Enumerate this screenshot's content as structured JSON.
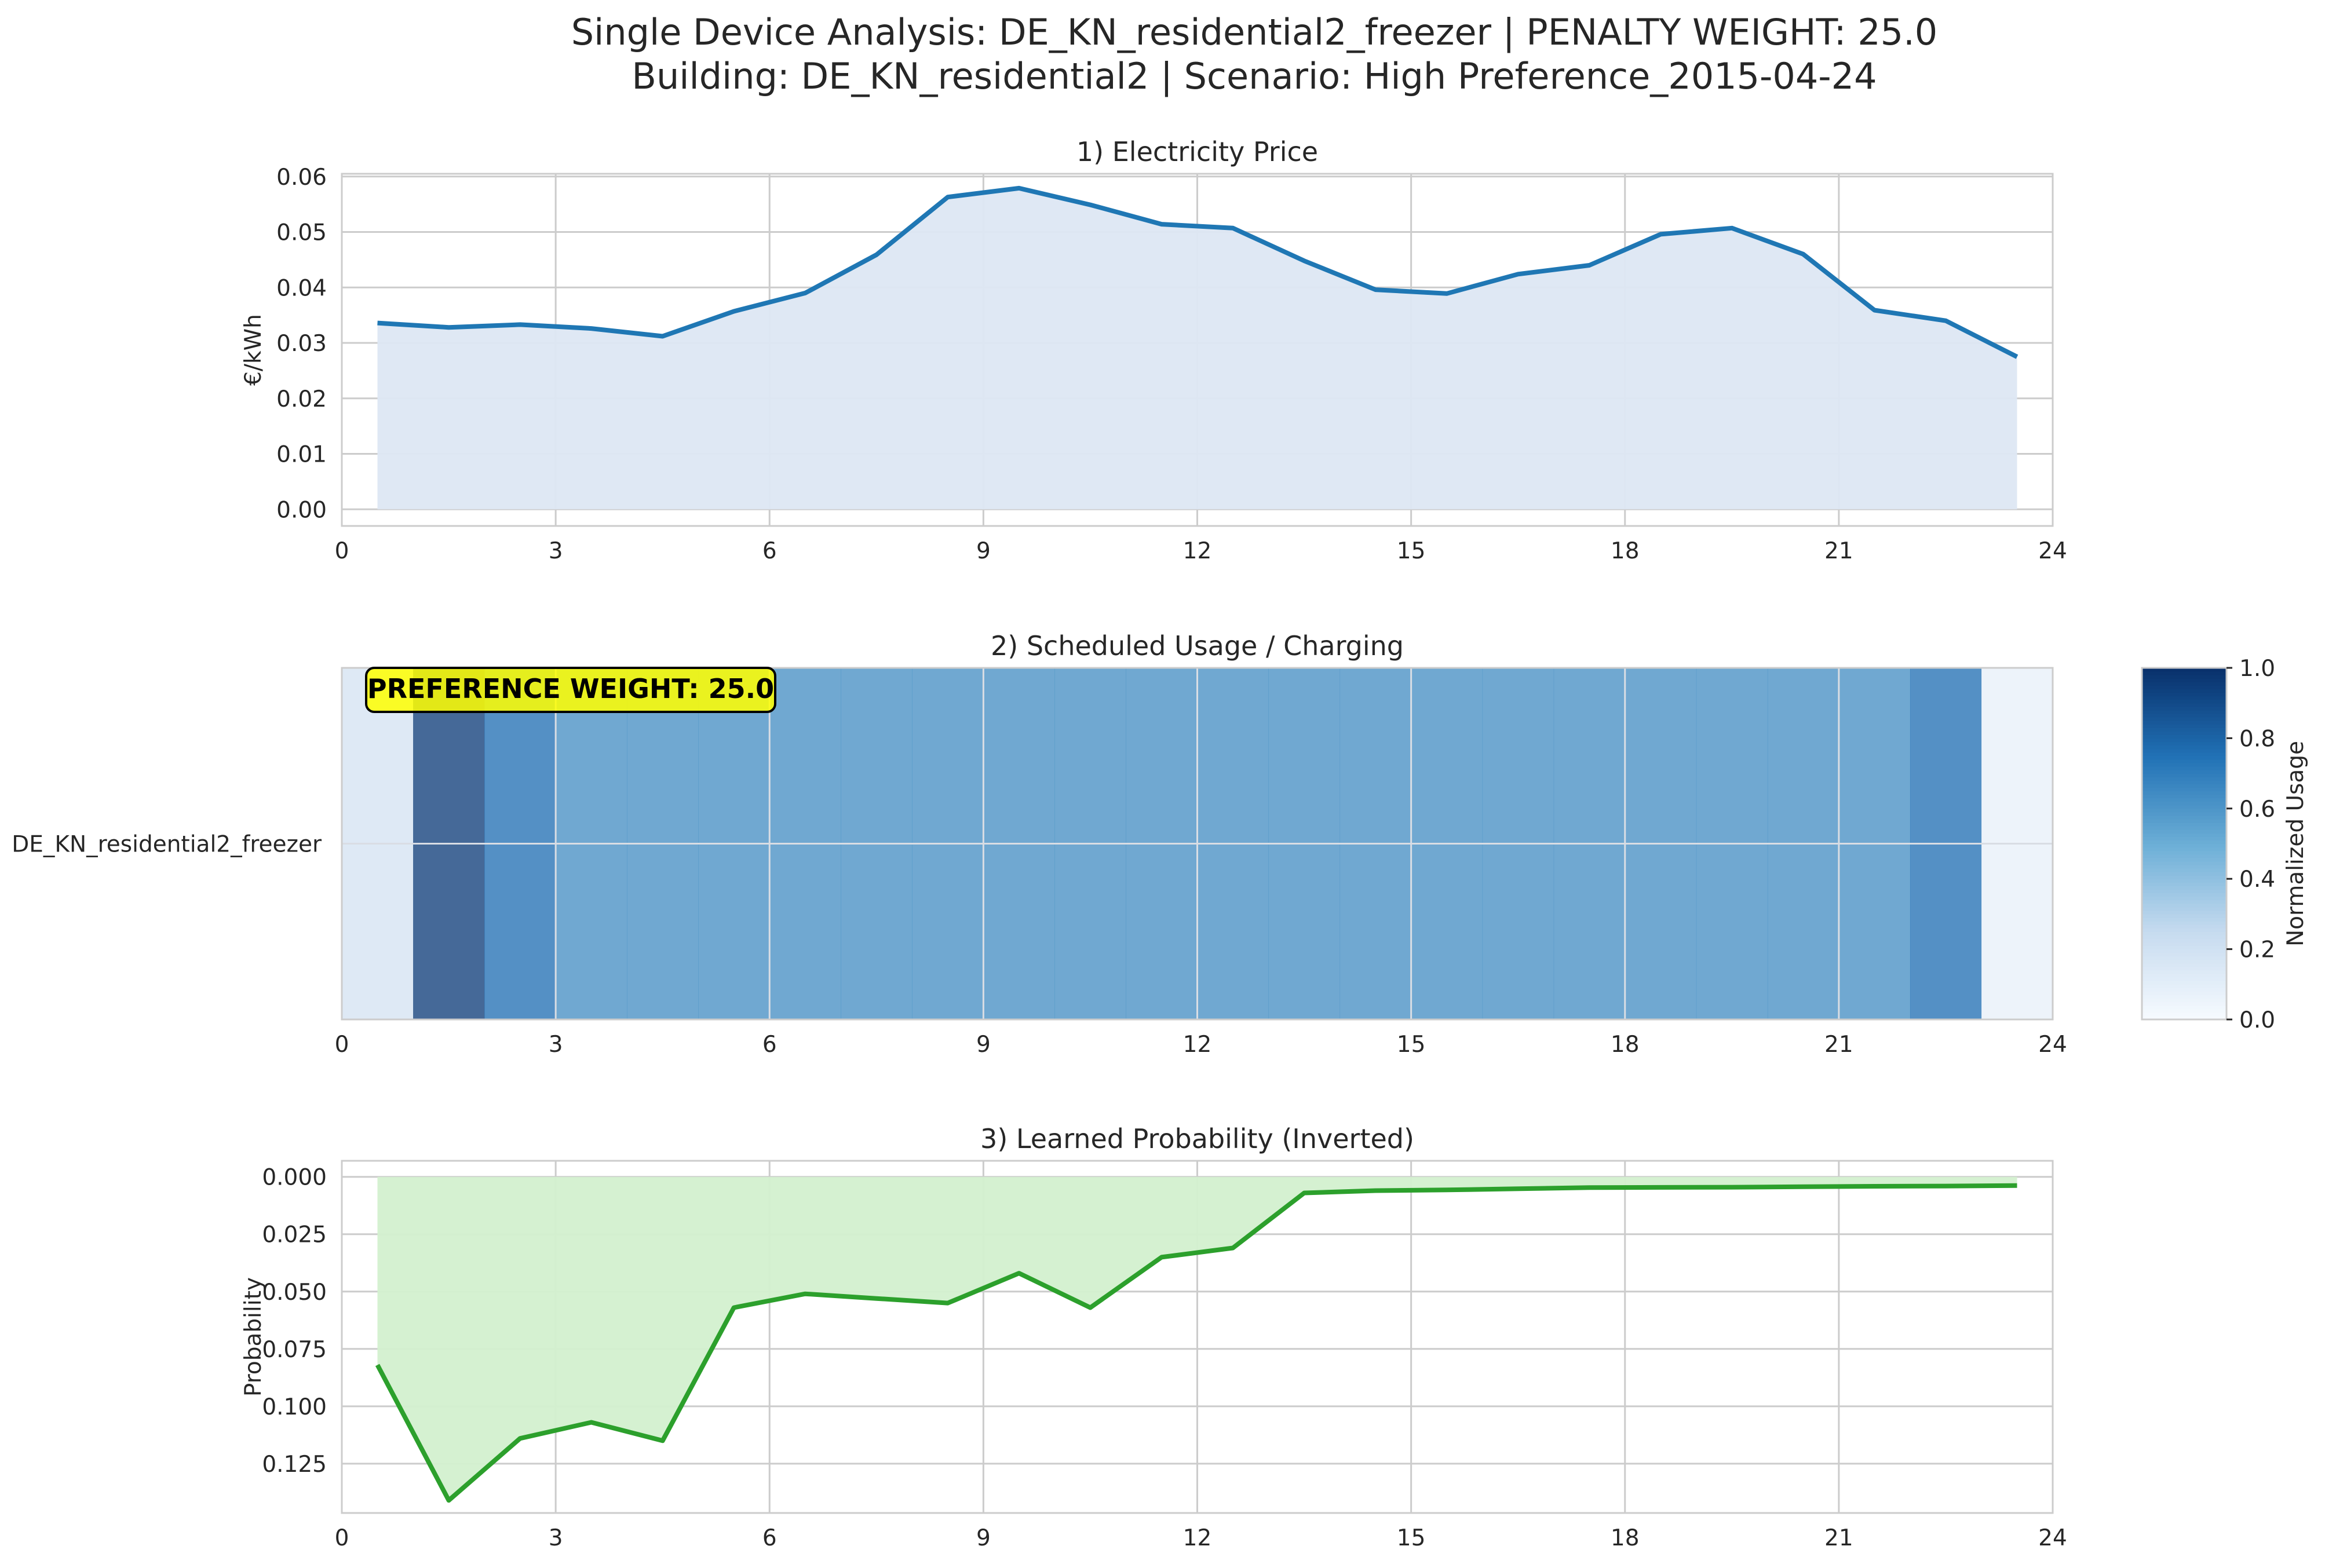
{
  "figure": {
    "title_line1": "Single Device Analysis: DE_KN_residential2_freezer | PENALTY WEIGHT: 25.0",
    "title_line2": "Building: DE_KN_residential2 | Scenario: High Preference_2015-04-24"
  },
  "chart_data": [
    {
      "type": "area",
      "title": "1) Electricity Price",
      "xlabel": "",
      "ylabel": "€/kWh",
      "xlim": [
        0,
        24
      ],
      "ylim": [
        -0.003,
        0.0605
      ],
      "xticks": [
        "0",
        "3",
        "6",
        "9",
        "12",
        "15",
        "18",
        "21",
        "24"
      ],
      "yticks": [
        "0.00",
        "0.01",
        "0.02",
        "0.03",
        "0.04",
        "0.05",
        "0.06"
      ],
      "grid": true,
      "x": [
        0.5,
        1.5,
        2.5,
        3.5,
        4.5,
        5.5,
        6.5,
        7.5,
        8.5,
        9.5,
        10.5,
        11.5,
        12.5,
        13.5,
        14.5,
        15.5,
        16.5,
        17.5,
        18.5,
        19.5,
        20.5,
        21.5,
        22.5,
        23.5
      ],
      "values": [
        0.0336,
        0.0328,
        0.0333,
        0.0326,
        0.0312,
        0.0357,
        0.039,
        0.0459,
        0.0563,
        0.0579,
        0.0549,
        0.0514,
        0.0507,
        0.0448,
        0.0396,
        0.0389,
        0.0424,
        0.044,
        0.0496,
        0.0507,
        0.046,
        0.0359,
        0.034,
        0.0275
      ],
      "line_color": "#1f77b4",
      "fill_color": "#dde7f3"
    },
    {
      "type": "heatmap",
      "title": "2) Scheduled Usage / Charging",
      "xlim": [
        0,
        24
      ],
      "xticks": [
        "0",
        "3",
        "6",
        "9",
        "12",
        "15",
        "18",
        "21",
        "24"
      ],
      "rows": [
        "DE_KN_residential2_freezer"
      ],
      "hours": [
        0,
        1,
        2,
        3,
        4,
        5,
        6,
        7,
        8,
        9,
        10,
        11,
        12,
        13,
        14,
        15,
        16,
        17,
        18,
        19,
        20,
        21,
        22,
        23
      ],
      "values": [
        0.15,
        0.95,
        0.75,
        0.62,
        0.62,
        0.62,
        0.62,
        0.62,
        0.62,
        0.62,
        0.62,
        0.62,
        0.62,
        0.62,
        0.62,
        0.62,
        0.62,
        0.62,
        0.62,
        0.62,
        0.62,
        0.62,
        0.75,
        0.05
      ],
      "annotation": "PREFERENCE WEIGHT: 25.0",
      "colorbar_label": "Normalized Usage",
      "colorbar_ticks": [
        "0.0",
        "0.2",
        "0.4",
        "0.6",
        "0.8",
        "1.0"
      ],
      "colormap": "Blues",
      "grid": true
    },
    {
      "type": "area",
      "title": "3) Learned Probability (Inverted)",
      "xlabel": "",
      "ylabel": "Probability",
      "y_inverted": true,
      "xlim": [
        0,
        24
      ],
      "ylim": [
        -0.007,
        0.1465
      ],
      "xticks": [
        "0",
        "3",
        "6",
        "9",
        "12",
        "15",
        "18",
        "21",
        "24"
      ],
      "yticks": [
        "0.000",
        "0.025",
        "0.050",
        "0.075",
        "0.100",
        "0.125"
      ],
      "grid": true,
      "x": [
        0.5,
        1.5,
        2.5,
        3.5,
        4.5,
        5.5,
        6.5,
        7.5,
        8.5,
        9.5,
        10.5,
        11.5,
        12.5,
        13.5,
        14.5,
        15.5,
        16.5,
        17.5,
        18.5,
        19.5,
        20.5,
        21.5,
        22.5,
        23.5
      ],
      "values": [
        0.082,
        0.141,
        0.114,
        0.107,
        0.115,
        0.057,
        0.051,
        0.053,
        0.055,
        0.042,
        0.057,
        0.035,
        0.031,
        0.007,
        0.006,
        0.0057,
        0.0052,
        0.0047,
        0.0046,
        0.0045,
        0.0043,
        0.0041,
        0.004,
        0.0038
      ],
      "line_color": "#2ca02c",
      "fill_color": "#d3f0cf"
    }
  ]
}
